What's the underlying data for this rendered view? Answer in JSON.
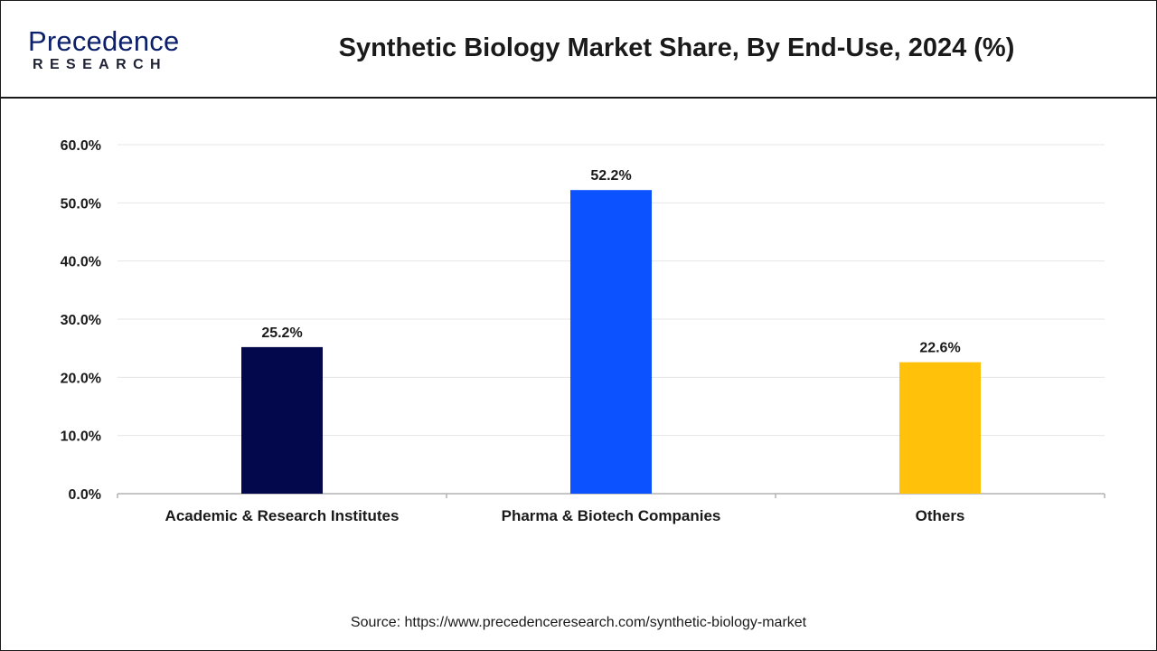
{
  "header": {
    "logo_word": "Precedence",
    "logo_sub": "RESEARCH",
    "title": "Synthetic Biology Market Share, By End-Use, 2024 (%)"
  },
  "footer": {
    "source": "Source: https://www.precedenceresearch.com/synthetic-biology-market"
  },
  "colors": {
    "brand": "#0b1f6b",
    "academic": "#02084b",
    "pharma": "#0d52ff",
    "others": "#ffc10a"
  },
  "chart_data": {
    "type": "bar",
    "categories": [
      "Academic & Research Institutes",
      "Pharma & Biotech Companies",
      "Others"
    ],
    "values": [
      25.2,
      52.2,
      22.6
    ],
    "data_labels": [
      "25.2%",
      "52.2%",
      "22.6%"
    ],
    "bar_colors": [
      "#02084b",
      "#0d52ff",
      "#ffc10a"
    ],
    "ylim": [
      0,
      60
    ],
    "yticks": [
      0,
      10,
      20,
      30,
      40,
      50,
      60
    ],
    "ytick_labels": [
      "0.0%",
      "10.0%",
      "20.0%",
      "30.0%",
      "40.0%",
      "50.0%",
      "60.0%"
    ],
    "grid": true,
    "legend": false
  }
}
